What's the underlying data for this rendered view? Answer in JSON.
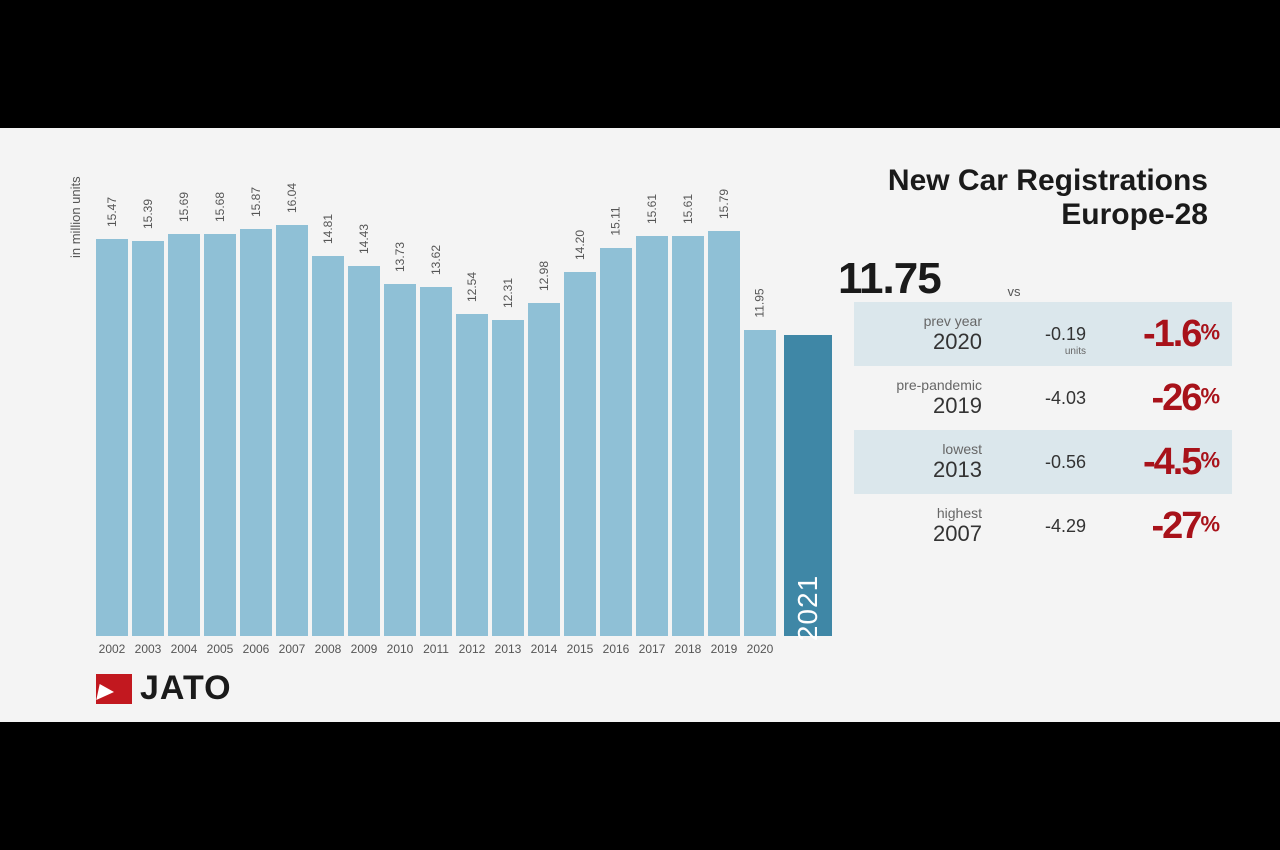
{
  "title": {
    "line1": "New Car Registrations",
    "line2": "Europe-28"
  },
  "y_axis_label": "in million units",
  "chart": {
    "type": "bar",
    "max_value": 16.5,
    "bar_color": "#8fc0d6",
    "highlight_bar_color": "#3f87a6",
    "background_color": "#f4f4f4",
    "label_color": "#555555",
    "label_fontsize": 12,
    "bars": [
      {
        "year": "2002",
        "value": 15.47
      },
      {
        "year": "2003",
        "value": 15.39
      },
      {
        "year": "2004",
        "value": 15.69
      },
      {
        "year": "2005",
        "value": 15.68
      },
      {
        "year": "2006",
        "value": 15.87
      },
      {
        "year": "2007",
        "value": 16.04
      },
      {
        "year": "2008",
        "value": 14.81
      },
      {
        "year": "2009",
        "value": 14.43
      },
      {
        "year": "2010",
        "value": 13.73
      },
      {
        "year": "2011",
        "value": 13.62
      },
      {
        "year": "2012",
        "value": 12.54
      },
      {
        "year": "2013",
        "value": 12.31
      },
      {
        "year": "2014",
        "value": 12.98
      },
      {
        "year": "2015",
        "value": 14.2
      },
      {
        "year": "2016",
        "value": 15.11
      },
      {
        "year": "2017",
        "value": 15.61
      },
      {
        "year": "2018",
        "value": 15.61
      },
      {
        "year": "2019",
        "value": 15.79
      },
      {
        "year": "2020",
        "value": 11.95
      }
    ],
    "highlight": {
      "year": "2021",
      "value": 11.75,
      "value_display": "11.75"
    }
  },
  "vs_header": "vs",
  "comparisons": [
    {
      "label_top": "prev year",
      "label_bot": "2020",
      "diff": "-0.19",
      "units": "units",
      "pct": "-1.6",
      "shaded": true
    },
    {
      "label_top": "pre-pandemic",
      "label_bot": "2019",
      "diff": "-4.03",
      "units": "",
      "pct": "-26",
      "shaded": false
    },
    {
      "label_top": "lowest",
      "label_bot": "2013",
      "diff": "-0.56",
      "units": "",
      "pct": "-4.5",
      "shaded": true
    },
    {
      "label_top": "highest",
      "label_bot": "2007",
      "diff": "-4.29",
      "units": "",
      "pct": "-27",
      "shaded": false
    }
  ],
  "logo_text": "JATO",
  "colors": {
    "pct_red": "#a8121a",
    "text_dark": "#1a1a1a",
    "text_mid": "#555555",
    "shaded_row": "#dbe7ec",
    "logo_red": "#c2181f"
  }
}
